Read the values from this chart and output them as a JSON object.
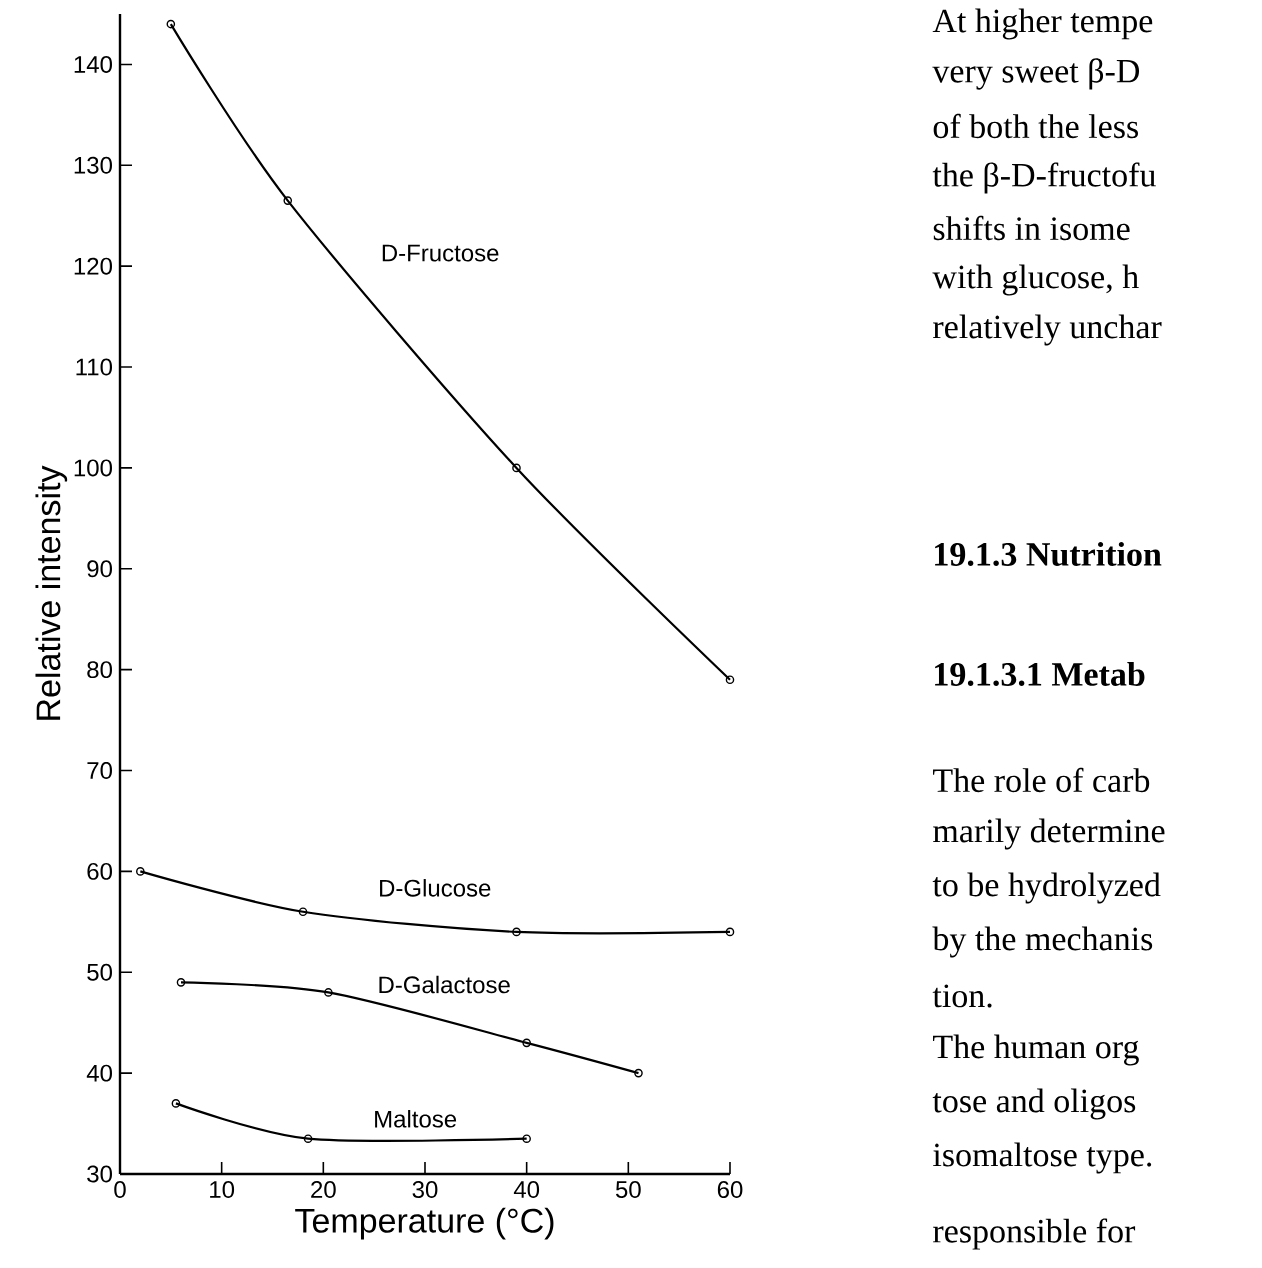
{
  "chart_data": {
    "type": "line",
    "xlabel": "Temperature (°C)",
    "ylabel": "Relative intensity",
    "xlim": [
      0,
      60
    ],
    "ylim": [
      30,
      145
    ],
    "xticks": [
      0,
      10,
      20,
      30,
      40,
      50,
      60
    ],
    "yticks": [
      30,
      40,
      50,
      60,
      70,
      80,
      90,
      100,
      110,
      120,
      130,
      140
    ],
    "marker": "circle",
    "line_style": "solid",
    "series": [
      {
        "name": "D-Fructose",
        "color": "#000000",
        "x": [
          5,
          16.5,
          39,
          60
        ],
        "values": [
          144,
          126.5,
          100,
          79
        ]
      },
      {
        "name": "D-Glucose",
        "color": "#000000",
        "x": [
          2,
          18,
          39,
          60
        ],
        "values": [
          60,
          56,
          54,
          54
        ]
      },
      {
        "name": "D-Galactose",
        "color": "#000000",
        "x": [
          6,
          20.5,
          40,
          51
        ],
        "values": [
          49,
          48,
          43,
          40
        ]
      },
      {
        "name": "Maltose",
        "color": "#000000",
        "x": [
          5.5,
          18.5,
          40
        ],
        "values": [
          37,
          33.5,
          33.5
        ]
      }
    ],
    "annotations": [
      "At higher tempe",
      "very sweet β-D",
      "of both the less",
      "the β-D-fructofu",
      "shifts in isome",
      "with glucose, h",
      "relatively unchar",
      "19.1.3 Nutrition",
      "19.1.3.1 Metab",
      "The role of carb",
      "marily determine",
      "to be hydrolyzed",
      "by the mechanis",
      "tion.",
      "The human org",
      "tose and oligos",
      "isomaltose type.",
      "responsible for"
    ]
  }
}
